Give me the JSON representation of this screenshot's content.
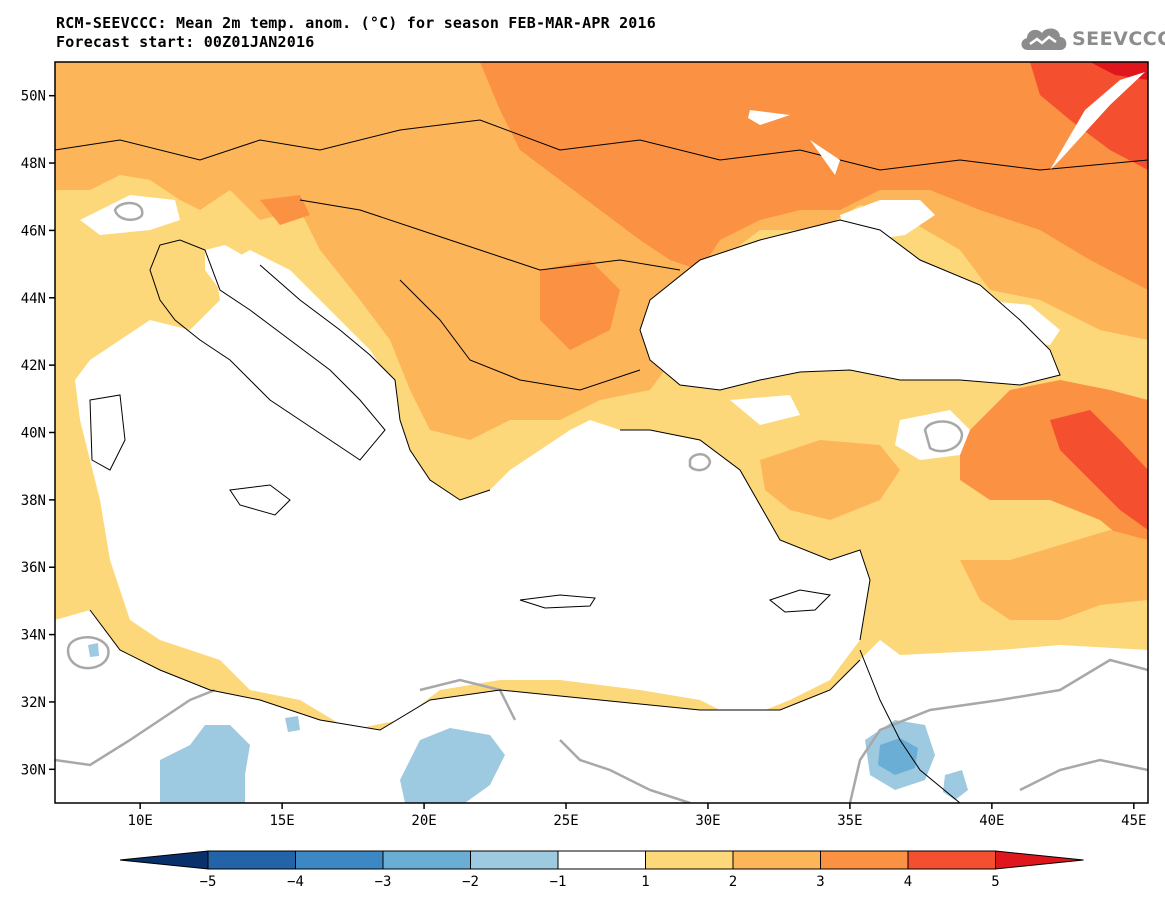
{
  "header": {
    "title_line1": "RCM-SEEVCCC: Mean 2m temp. anom. (°C) for season FEB-MAR-APR 2016",
    "title_line2": "Forecast start: 00Z01JAN2016",
    "logo_text": "SEEVCCC"
  },
  "map": {
    "lon_range": [
      7,
      45.5
    ],
    "lat_range": [
      29,
      51
    ],
    "lat_labels": [
      "50N",
      "48N",
      "46N",
      "44N",
      "42N",
      "40N",
      "38N",
      "36N",
      "34N",
      "32N",
      "30N"
    ],
    "lon_labels": [
      "10E",
      "15E",
      "20E",
      "25E",
      "30E",
      "35E",
      "40E",
      "45E"
    ],
    "colors": {
      "anom_1_2": "#fdd87a",
      "anom_2_3": "#fdb55a",
      "anom_3_4": "#fb9142",
      "anom_4_5": "#f4502f",
      "anom_gt5": "#e0161d",
      "anom_m1_m2": "#9ecae1",
      "anom_m2_m3": "#6aaed6",
      "zero_contour": "#a8a8a8"
    }
  },
  "colorbar": {
    "labels": [
      "−5",
      "−4",
      "−3",
      "−2",
      "−1",
      "1",
      "2",
      "3",
      "4",
      "5"
    ],
    "colors": [
      "#08306b",
      "#2363a8",
      "#3b88c5",
      "#6aaed6",
      "#9ecae1",
      "#ffffff",
      "#fdd87a",
      "#fdb55a",
      "#fb9142",
      "#f4502f",
      "#e0161d"
    ]
  }
}
